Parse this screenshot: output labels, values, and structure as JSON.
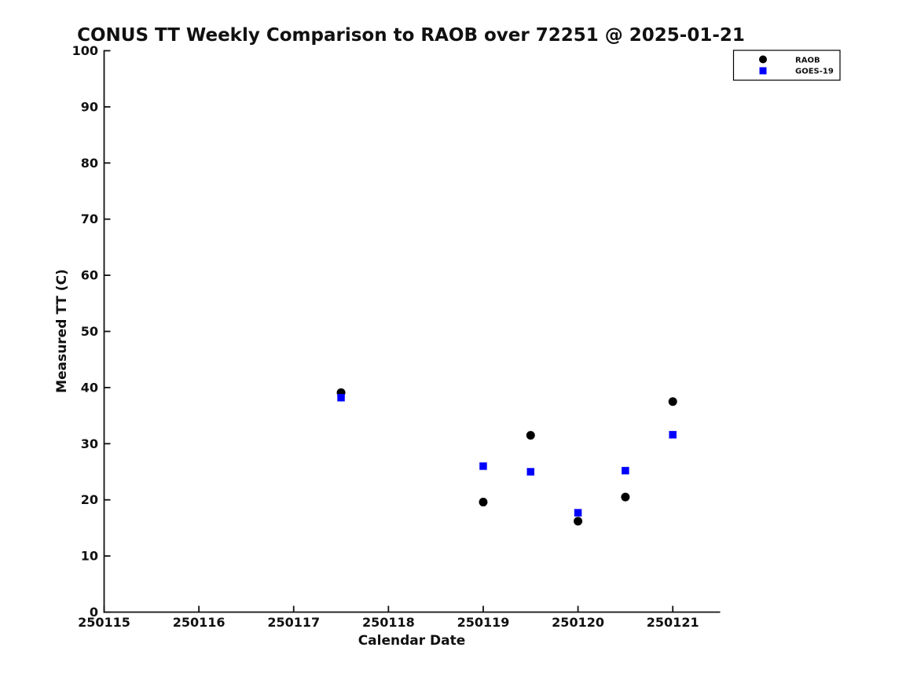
{
  "page": {
    "background_color": "#ffffff",
    "text_color": "#111111"
  },
  "chart_data": {
    "type": "scatter",
    "title": "CONUS TT Weekly Comparison to RAOB over 72251 @ 2025-01-21",
    "xlabel": "Calendar Date",
    "ylabel": "Measured TT (C)",
    "xlim": [
      250115,
      250121.5
    ],
    "ylim": [
      0,
      100
    ],
    "x_ticks": [
      250115,
      250116,
      250117,
      250118,
      250119,
      250120,
      250121
    ],
    "x_tick_labels": [
      "250115",
      "250116",
      "250117",
      "250118",
      "250119",
      "250120",
      "250121"
    ],
    "y_ticks": [
      0,
      10,
      20,
      30,
      40,
      50,
      60,
      70,
      80,
      90,
      100
    ],
    "grid": false,
    "legend_position": "top-right",
    "series": [
      {
        "name": "RAOB",
        "marker": "circle",
        "color": "#000000",
        "points": [
          {
            "x": 250117.5,
            "y": 39.1
          },
          {
            "x": 250119.0,
            "y": 19.6
          },
          {
            "x": 250119.5,
            "y": 31.5
          },
          {
            "x": 250120.0,
            "y": 16.2
          },
          {
            "x": 250120.5,
            "y": 20.5
          },
          {
            "x": 250121.0,
            "y": 37.5
          }
        ]
      },
      {
        "name": "GOES-19",
        "marker": "square",
        "color": "#0000ff",
        "points": [
          {
            "x": 250117.5,
            "y": 38.2
          },
          {
            "x": 250119.0,
            "y": 26.0
          },
          {
            "x": 250119.5,
            "y": 25.0
          },
          {
            "x": 250120.0,
            "y": 17.7
          },
          {
            "x": 250120.5,
            "y": 25.2
          },
          {
            "x": 250121.0,
            "y": 31.6
          }
        ]
      }
    ]
  }
}
